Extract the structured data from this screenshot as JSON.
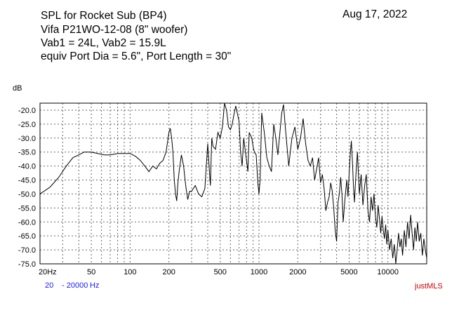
{
  "header": {
    "line1": "SPL for Rocket Sub  (BP4)",
    "line2": "Vifa P21WO-12-08  (8\" woofer)",
    "line3": "Vab1 = 24L, Vab2 = 15.9L",
    "line4": "equiv Port Dia = 5.6\", Port Length = 30\"",
    "date": "Aug 17, 2022"
  },
  "footer": {
    "range_start": "20",
    "range_end": "- 20000",
    "range_unit": "Hz",
    "brand": "justMLS"
  },
  "colors": {
    "range_text": "#1a1aff",
    "brand_text": "#cc0000",
    "trace": "#000000"
  },
  "chart_data": {
    "type": "line",
    "title": "SPL for Rocket Sub  (BP4)",
    "xlabel": "",
    "ylabel": "dB",
    "x_scale": "log",
    "xlim": [
      20,
      20000
    ],
    "ylim": [
      -75,
      -17.5
    ],
    "grid": true,
    "x_ticks": [
      {
        "value": 20,
        "label": "20Hz"
      },
      {
        "value": 50,
        "label": "50"
      },
      {
        "value": 100,
        "label": "100"
      },
      {
        "value": 200,
        "label": "200"
      },
      {
        "value": 500,
        "label": "500"
      },
      {
        "value": 1000,
        "label": "1000"
      },
      {
        "value": 2000,
        "label": "2000"
      },
      {
        "value": 5000,
        "label": "5000"
      },
      {
        "value": 10000,
        "label": "10000"
      }
    ],
    "y_ticks": [
      -20,
      -25,
      -30,
      -35,
      -40,
      -45,
      -50,
      -55,
      -60,
      -65,
      -70,
      -75
    ],
    "y_tick_labels": [
      "-20.0",
      "-25.0",
      "-30.0",
      "-35.0",
      "-40.0",
      "-45.0",
      "-50.0",
      "-55.0",
      "-60.0",
      "-65.0",
      "-70.0",
      "-75.0"
    ],
    "series": [
      {
        "values": [
          [
            20,
            -50
          ],
          [
            24,
            -47.5
          ],
          [
            28,
            -44
          ],
          [
            32,
            -40
          ],
          [
            36,
            -37
          ],
          [
            40,
            -36
          ],
          [
            44,
            -35
          ],
          [
            50,
            -35
          ],
          [
            56,
            -35.5
          ],
          [
            63,
            -36
          ],
          [
            70,
            -36
          ],
          [
            80,
            -35.5
          ],
          [
            90,
            -35.5
          ],
          [
            100,
            -35.5
          ],
          [
            110,
            -36.5
          ],
          [
            120,
            -38
          ],
          [
            130,
            -40
          ],
          [
            140,
            -42
          ],
          [
            150,
            -40
          ],
          [
            160,
            -41
          ],
          [
            170,
            -39
          ],
          [
            180,
            -38
          ],
          [
            190,
            -35
          ],
          [
            200,
            -28
          ],
          [
            205,
            -26.5
          ],
          [
            210,
            -30
          ],
          [
            215,
            -35
          ],
          [
            220,
            -45
          ],
          [
            225,
            -50
          ],
          [
            230,
            -52.5
          ],
          [
            235,
            -46
          ],
          [
            240,
            -42
          ],
          [
            250,
            -36
          ],
          [
            260,
            -40
          ],
          [
            270,
            -47
          ],
          [
            280,
            -52
          ],
          [
            290,
            -49
          ],
          [
            300,
            -49
          ],
          [
            320,
            -47
          ],
          [
            340,
            -50
          ],
          [
            360,
            -51
          ],
          [
            380,
            -48
          ],
          [
            400,
            -32
          ],
          [
            410,
            -40
          ],
          [
            420,
            -47
          ],
          [
            430,
            -30
          ],
          [
            440,
            -33
          ],
          [
            460,
            -34
          ],
          [
            480,
            -28
          ],
          [
            500,
            -30
          ],
          [
            520,
            -26
          ],
          [
            540,
            -17.5
          ],
          [
            560,
            -20
          ],
          [
            580,
            -26
          ],
          [
            600,
            -27
          ],
          [
            620,
            -25
          ],
          [
            640,
            -21.5
          ],
          [
            660,
            -18.5
          ],
          [
            700,
            -24
          ],
          [
            720,
            -35
          ],
          [
            740,
            -40
          ],
          [
            760,
            -30
          ],
          [
            800,
            -38
          ],
          [
            820,
            -42
          ],
          [
            840,
            -28
          ],
          [
            880,
            -30
          ],
          [
            900,
            -33
          ],
          [
            920,
            -35
          ],
          [
            950,
            -36
          ],
          [
            980,
            -46
          ],
          [
            1000,
            -50
          ],
          [
            1020,
            -45
          ],
          [
            1050,
            -21
          ],
          [
            1100,
            -28
          ],
          [
            1150,
            -37
          ],
          [
            1200,
            -40
          ],
          [
            1250,
            -42
          ],
          [
            1300,
            -25
          ],
          [
            1350,
            -30
          ],
          [
            1400,
            -36
          ],
          [
            1500,
            -21
          ],
          [
            1550,
            -18
          ],
          [
            1600,
            -26
          ],
          [
            1700,
            -40
          ],
          [
            1800,
            -30
          ],
          [
            1900,
            -26
          ],
          [
            2000,
            -34
          ],
          [
            2100,
            -30
          ],
          [
            2200,
            -23
          ],
          [
            2300,
            -32
          ],
          [
            2400,
            -38
          ],
          [
            2500,
            -40
          ],
          [
            2600,
            -37
          ],
          [
            2700,
            -45
          ],
          [
            2800,
            -41
          ],
          [
            2900,
            -37
          ],
          [
            3000,
            -46
          ],
          [
            3100,
            -43
          ],
          [
            3200,
            -48
          ],
          [
            3300,
            -56
          ],
          [
            3400,
            -53
          ],
          [
            3500,
            -51
          ],
          [
            3600,
            -46
          ],
          [
            3700,
            -49
          ],
          [
            3800,
            -55
          ],
          [
            3900,
            -63
          ],
          [
            4000,
            -67
          ],
          [
            4100,
            -53
          ],
          [
            4200,
            -50
          ],
          [
            4300,
            -44
          ],
          [
            4400,
            -50
          ],
          [
            4500,
            -60
          ],
          [
            4600,
            -54
          ],
          [
            4700,
            -49
          ],
          [
            4800,
            -45
          ],
          [
            4900,
            -51
          ],
          [
            5000,
            -43
          ],
          [
            5100,
            -36
          ],
          [
            5200,
            -31
          ],
          [
            5300,
            -38
          ],
          [
            5400,
            -47
          ],
          [
            5500,
            -53
          ],
          [
            5600,
            -46
          ],
          [
            5700,
            -40
          ],
          [
            5800,
            -35
          ],
          [
            6000,
            -50
          ],
          [
            6200,
            -43
          ],
          [
            6400,
            -54
          ],
          [
            6600,
            -47
          ],
          [
            6800,
            -43
          ],
          [
            7000,
            -56
          ],
          [
            7200,
            -60
          ],
          [
            7400,
            -51
          ],
          [
            7600,
            -56
          ],
          [
            7800,
            -50
          ],
          [
            8000,
            -58
          ],
          [
            8200,
            -62
          ],
          [
            8400,
            -54
          ],
          [
            8600,
            -59
          ],
          [
            8800,
            -64
          ],
          [
            9000,
            -58
          ],
          [
            9200,
            -63
          ],
          [
            9400,
            -66
          ],
          [
            9600,
            -61
          ],
          [
            9800,
            -68
          ],
          [
            10000,
            -63
          ],
          [
            10300,
            -70
          ],
          [
            10600,
            -66
          ],
          [
            10900,
            -73
          ],
          [
            11200,
            -68
          ],
          [
            11500,
            -75
          ],
          [
            11800,
            -70
          ],
          [
            12100,
            -64
          ],
          [
            12400,
            -69
          ],
          [
            12700,
            -66
          ],
          [
            13000,
            -72
          ],
          [
            13400,
            -63
          ],
          [
            13800,
            -69
          ],
          [
            14200,
            -60
          ],
          [
            14600,
            -66
          ],
          [
            15000,
            -57.5
          ],
          [
            15400,
            -64
          ],
          [
            15800,
            -70
          ],
          [
            16200,
            -62
          ],
          [
            16600,
            -67
          ],
          [
            17000,
            -60
          ],
          [
            17500,
            -67
          ],
          [
            18000,
            -64
          ],
          [
            18500,
            -72
          ],
          [
            19000,
            -66
          ],
          [
            19500,
            -70
          ],
          [
            20000,
            -73
          ]
        ]
      }
    ]
  }
}
